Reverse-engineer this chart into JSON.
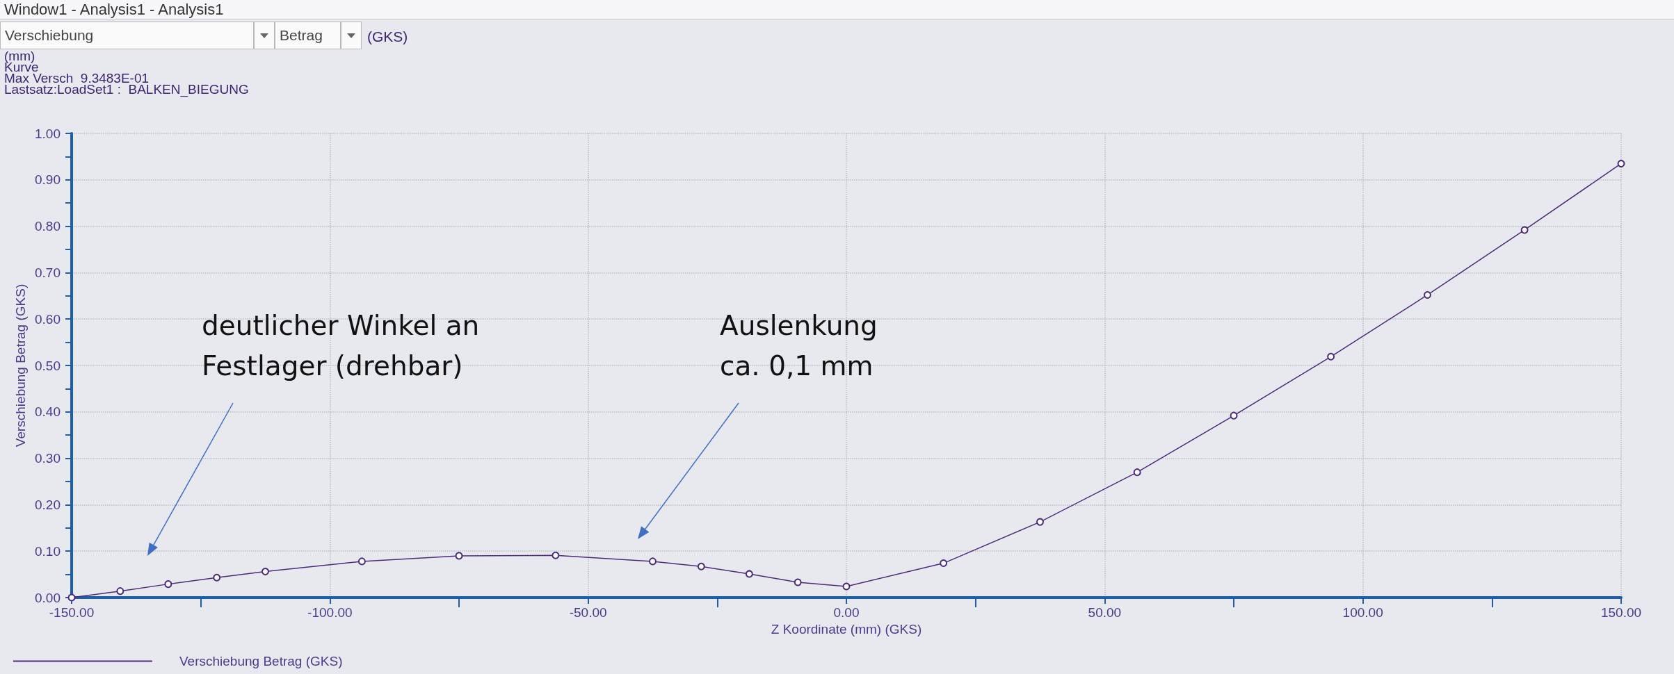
{
  "chart_data": {
    "type": "line",
    "title": "Window1 - Analysis1 - Analysis1",
    "xlabel": "Z Koordinate (mm) (GKS)",
    "ylabel": "Verschiebung Betrag (GKS)",
    "annotations": [
      "Verschiebung",
      "Betrag",
      "(GKS)",
      "(mm)",
      "Kurve",
      "Max Versch  9.3483E-01",
      "Lastsatz:LoadSet1 :  BALKEN_BIEGUNG",
      "deutlicher Winkel an\nFestlager (drehbar)",
      "Auslenkung\nca. 0,1 mm"
    ],
    "x": [
      -150,
      -140.6,
      -131.3,
      -121.9,
      -112.5,
      -93.8,
      -75,
      -56.3,
      -37.5,
      -28.1,
      -18.8,
      -9.4,
      0,
      18.8,
      37.5,
      56.3,
      75,
      93.8,
      112.5,
      131.3,
      150
    ],
    "series": [
      {
        "name": "Verschiebung Betrag (GKS)",
        "color": "#4b2a7a",
        "values": [
          0,
          0.014,
          0.029,
          0.043,
          0.056,
          0.078,
          0.09,
          0.091,
          0.078,
          0.067,
          0.051,
          0.033,
          0.024,
          0.074,
          0.163,
          0.27,
          0.392,
          0.519,
          0.652,
          0.792,
          0.935
        ]
      }
    ],
    "xlim": [
      -150,
      150
    ],
    "xticks": [
      {
        "value": -150,
        "label": "-150.00"
      },
      {
        "value": -100,
        "label": "-100.00"
      },
      {
        "value": -50,
        "label": "-50.00"
      },
      {
        "value": 0,
        "label": "0.00"
      },
      {
        "value": 50,
        "label": "50.00"
      },
      {
        "value": 100,
        "label": "100.00"
      },
      {
        "value": 150,
        "label": "150.00"
      }
    ],
    "ylim": [
      0,
      1
    ],
    "yticks": [
      {
        "value": 0,
        "label": "0.00"
      },
      {
        "value": 0.1,
        "label": "0.10"
      },
      {
        "value": 0.2,
        "label": "0.20"
      },
      {
        "value": 0.3,
        "label": "0.30"
      },
      {
        "value": 0.4,
        "label": "0.40"
      },
      {
        "value": 0.5,
        "label": "0.50"
      },
      {
        "value": 0.6,
        "label": "0.60"
      },
      {
        "value": 0.7,
        "label": "0.70"
      },
      {
        "value": 0.8,
        "label": "0.80"
      },
      {
        "value": 0.9,
        "label": "0.90"
      },
      {
        "value": 1,
        "label": "1.00"
      }
    ],
    "grid": true,
    "legend": "bottom left",
    "marker": "circle",
    "line_style": "solid"
  }
}
